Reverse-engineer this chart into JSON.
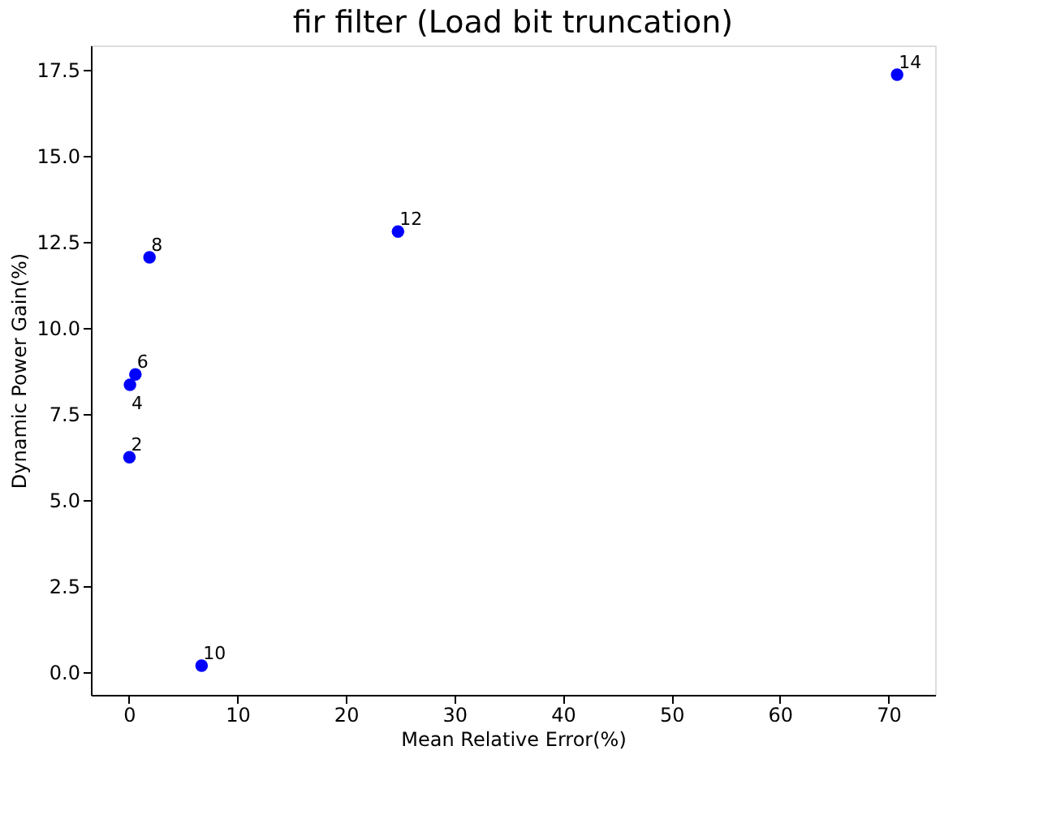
{
  "chart_data": {
    "type": "scatter",
    "title": "fir filter (Load bit truncation)",
    "xlabel": "Mean Relative Error(%)",
    "ylabel": "Dynamic Power Gain(%)",
    "x": [
      0.05,
      0.1,
      0.6,
      1.9,
      6.7,
      24.8,
      70.8
    ],
    "series": [
      {
        "color": "#0000ff",
        "values": [
          6.25,
          8.35,
          8.65,
          12.05,
          0.2,
          12.8,
          17.35
        ]
      }
    ],
    "marker": "circle",
    "grid": false,
    "xlim": [
      -3.5,
      74.3
    ],
    "ylim": [
      -0.65,
      18.2
    ],
    "xticks": [
      0,
      10,
      20,
      30,
      40,
      50,
      60,
      70
    ],
    "yticks": [
      {
        "value": 0,
        "label": "0.0"
      },
      2.5,
      {
        "value": 5,
        "label": "5.0"
      },
      7.5,
      {
        "value": 10,
        "label": "10.0"
      },
      12.5,
      {
        "value": 15,
        "label": "15.0"
      },
      17.5
    ],
    "annotations": [
      {
        "text": "2",
        "x": 0.05,
        "y": 6.25
      },
      {
        "text": "4",
        "x": 0.1,
        "y": 8.35
      },
      {
        "text": "6",
        "x": 0.6,
        "y": 8.65
      },
      {
        "text": "8",
        "x": 1.9,
        "y": 12.05
      },
      {
        "text": "10",
        "x": 6.7,
        "y": 0.2
      },
      {
        "text": "12",
        "x": 24.8,
        "y": 12.8
      },
      {
        "text": "14",
        "x": 70.8,
        "y": 17.35
      }
    ]
  }
}
